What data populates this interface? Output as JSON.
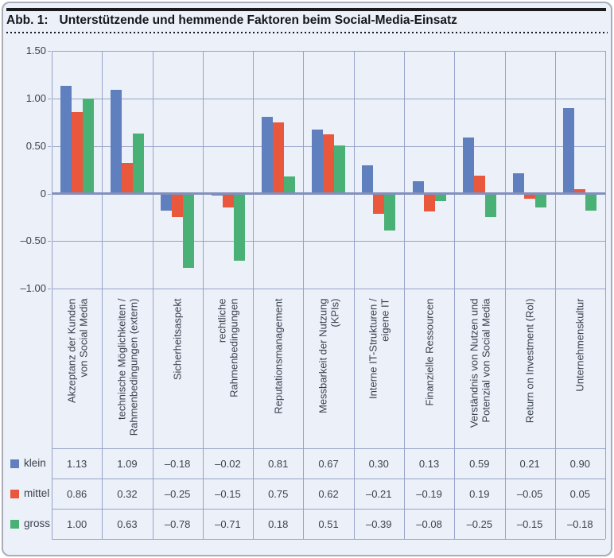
{
  "header": {
    "figure_label": "Abb. 1:",
    "title": "Unterstützende und hemmende Faktoren beim Social-Media-Einsatz"
  },
  "chart_data": {
    "type": "bar",
    "title": "Unterstützende und hemmende Faktoren beim Social-Media-Einsatz",
    "xlabel": "",
    "ylabel": "",
    "ylim": [
      -1.0,
      1.5
    ],
    "grid": true,
    "legend_position": "data-table-left",
    "data_table_shown": true,
    "y_ticks": [
      {
        "value": 1.5,
        "label": "1.50"
      },
      {
        "value": 1.0,
        "label": "1.00"
      },
      {
        "value": 0.5,
        "label": "0.50"
      },
      {
        "value": 0.0,
        "label": "0"
      },
      {
        "value": -0.5,
        "label": "–0.50"
      },
      {
        "value": -1.0,
        "label": "–1.00"
      }
    ],
    "categories": [
      {
        "label": "Akzeptanz der Kunden von Social Media",
        "lines": [
          "Akzeptanz der Kunden",
          "von Social Media"
        ]
      },
      {
        "label": "technische Möglichkeiten / Rahmenbedingungen (extern)",
        "lines": [
          "technische Möglichkeiten /",
          "Rahmenbedingungen (extern)"
        ]
      },
      {
        "label": "Sicherheitsaspekt",
        "lines": [
          "Sicherheitsaspekt"
        ]
      },
      {
        "label": "rechtliche Rahmenbedingungen",
        "lines": [
          "rechtliche",
          "Rahmenbedingungen"
        ]
      },
      {
        "label": "Reputationsmanagement",
        "lines": [
          "Reputationsmanagement"
        ]
      },
      {
        "label": "Messbarkeit der Nutzung (KPIs)",
        "lines": [
          "Messbarkeit der Nutzung",
          "(KPIs)"
        ]
      },
      {
        "label": "Interne IT-Strukturen / eigene IT",
        "lines": [
          "Interne IT-Strukturen /",
          "eigene IT"
        ]
      },
      {
        "label": "Finanzielle Ressourcen",
        "lines": [
          "Finanzielle Ressourcen"
        ]
      },
      {
        "label": "Verständnis von Nutzen und Potenzial von Social Media",
        "lines": [
          "Verständnis von Nutzen und",
          "Potenzial von Social Media"
        ]
      },
      {
        "label": "Return on Investment (RoI)",
        "lines": [
          "Return on Investment (RoI)"
        ]
      },
      {
        "label": "Unternehmenskultur",
        "lines": [
          "Unternehmenskultur"
        ]
      }
    ],
    "series": [
      {
        "name": "klein",
        "color": "#5f7fbe",
        "values": [
          1.13,
          1.09,
          -0.18,
          -0.02,
          0.81,
          0.67,
          0.3,
          0.13,
          0.59,
          0.21,
          0.9
        ]
      },
      {
        "name": "mittel",
        "color": "#e9573d",
        "values": [
          0.86,
          0.32,
          -0.25,
          -0.15,
          0.75,
          0.62,
          -0.21,
          -0.19,
          0.19,
          -0.05,
          0.05
        ]
      },
      {
        "name": "gross",
        "color": "#4ab176",
        "values": [
          1.0,
          0.63,
          -0.78,
          -0.71,
          0.18,
          0.51,
          -0.39,
          -0.08,
          -0.25,
          -0.15,
          -0.18
        ]
      }
    ]
  },
  "colors": {
    "panel_background": "#ecf0f8",
    "gridline": "#97a3c8",
    "zero_line": "#8290bd",
    "series_klein": "#5f7fbe",
    "series_mittel": "#e9573d",
    "series_gross": "#4ab176",
    "text": "#39414e",
    "title_text": "#15161a",
    "rule": "#1a1b1e"
  }
}
